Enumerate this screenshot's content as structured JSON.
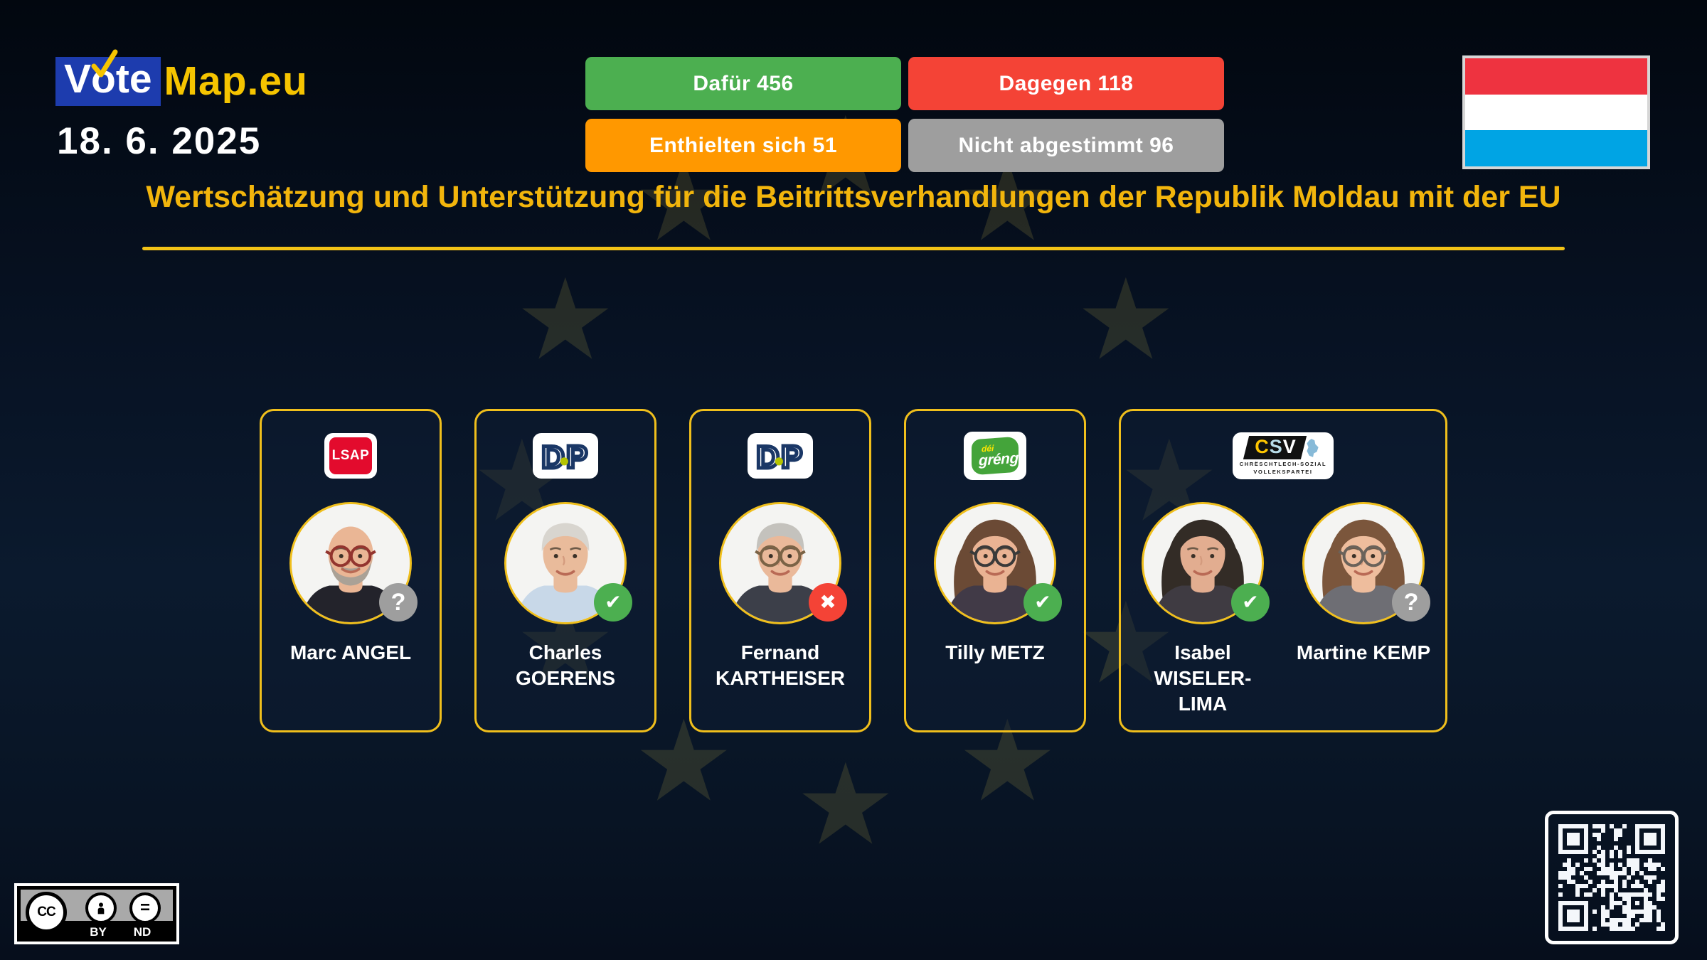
{
  "brand": {
    "vote": "Vote",
    "map": "Map.eu",
    "box_color": "#1d3cae",
    "accent_color": "#f5c400"
  },
  "date": "18. 6. 2025",
  "results": [
    {
      "id": "for",
      "label": "Dafür 456",
      "color": "#4caf50"
    },
    {
      "id": "against",
      "label": "Dagegen 118",
      "color": "#f44336"
    },
    {
      "id": "abstain",
      "label": "Enthielten sich 51",
      "color": "#ff9800"
    },
    {
      "id": "novote",
      "label": "Nicht abgestimmt 96",
      "color": "#9e9e9e"
    }
  ],
  "flag": {
    "country": "Luxembourg",
    "stripes": [
      "#ee3340",
      "#ffffff",
      "#00a4e4"
    ]
  },
  "title": "Wertschätzung und Unterstützung für die Beitrittsverhandlungen der Republik Moldau mit der EU",
  "accent_gold": "#f2b50c",
  "vote_icons": {
    "for": "✔",
    "against": "✖",
    "unknown": "?"
  },
  "badge_colors": {
    "for": "#4caf50",
    "against": "#f44336",
    "unknown": "#9e9e9e"
  },
  "party_logos": {
    "LSAP": {
      "text": "LSAP",
      "bg": "#e30b2d"
    },
    "DP": {
      "letters": [
        "D",
        "P"
      ],
      "letter_color": "#1a3766",
      "dot_color": "#b5c400"
    },
    "GRENG": {
      "top": "déi",
      "main": "gréng",
      "bg": "#44a43a",
      "accent": "#ffe600"
    },
    "CSV": {
      "text": "CSV",
      "c_color": "#ffc600",
      "s_color": "#b8dce8",
      "v_color": "#ffffff",
      "sub_line1": "CHRËSCHTLECH-SOZIAL",
      "sub_line2": "VOLLEKSPARTEI"
    }
  },
  "cards": [
    {
      "party": "LSAP",
      "members": [
        {
          "name_lines": [
            "Marc ANGEL"
          ],
          "vote": "unknown",
          "avatar": {
            "style": "bald",
            "skin": "#eab695",
            "shirt": "#23232b",
            "beard": "#aaa196",
            "glasses": "#93352f"
          }
        }
      ]
    },
    {
      "party": "DP",
      "members": [
        {
          "name_lines": [
            "Charles",
            "GOERENS"
          ],
          "vote": "for",
          "avatar": {
            "style": "short",
            "hair": "#d8d5cf",
            "skin": "#e9bb9b",
            "shirt": "#c8d8e8"
          }
        }
      ]
    },
    {
      "party": "DP",
      "members": [
        {
          "name_lines": [
            "Fernand",
            "KARTHEISER"
          ],
          "vote": "against",
          "avatar": {
            "style": "short",
            "hair": "#c4c2bd",
            "skin": "#eab99a",
            "shirt": "#3c3f49",
            "glasses": "#7b6346"
          }
        }
      ]
    },
    {
      "party": "GRENG",
      "members": [
        {
          "name_lines": [
            "Tilly METZ"
          ],
          "vote": "for",
          "avatar": {
            "style": "long",
            "hair": "#6b4a35",
            "skin": "#eab393",
            "shirt": "#413a47",
            "glasses": "#3a3a3a"
          }
        }
      ]
    },
    {
      "party": "CSV",
      "members": [
        {
          "name_lines": [
            "Isabel",
            "WISELER-",
            "LIMA"
          ],
          "vote": "for",
          "avatar": {
            "style": "long",
            "hair": "#332c26",
            "skin": "#e2ad90",
            "shirt": "#3f3b42"
          }
        },
        {
          "name_lines": [
            "Martine KEMP"
          ],
          "vote": "unknown",
          "avatar": {
            "style": "long",
            "hair": "#7b563c",
            "skin": "#eebd9d",
            "shirt": "#6e6e74",
            "glasses": "#6a625a"
          }
        }
      ]
    }
  ],
  "license": {
    "cc": "CC",
    "by": "BY",
    "nd": "ND"
  }
}
